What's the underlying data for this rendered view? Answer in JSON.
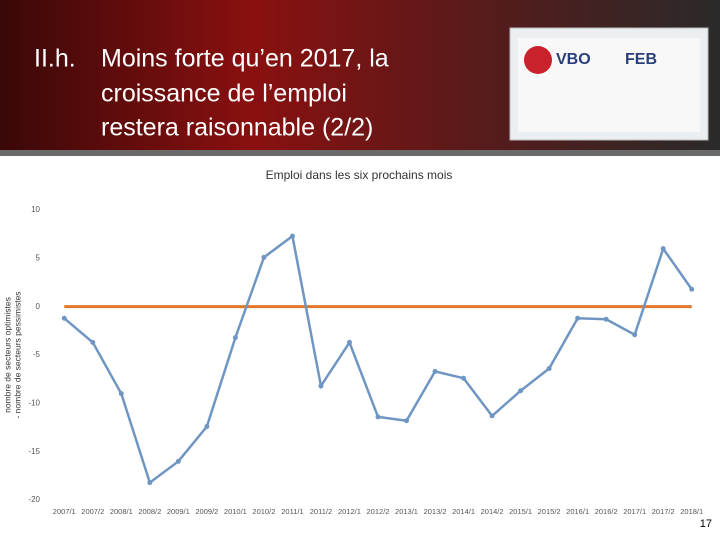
{
  "header": {
    "number": "II.h.",
    "title_lines": [
      "Moins forte qu’en 2017, la",
      "croissance de l’emploi",
      "restera raisonnable (2/2)"
    ],
    "sign": [
      "VBO",
      "FEB"
    ]
  },
  "page_number": "17",
  "chart_data": {
    "type": "line",
    "title": "Emploi dans les six prochains mois",
    "y_label_lines": [
      "nombre de secteurs optimistes",
      "- nombre de secteurs pessimistes"
    ],
    "categories": [
      "2007/1",
      "2007/2",
      "2008/1",
      "2008/2",
      "2009/1",
      "2009/2",
      "2010/1",
      "2010/2",
      "2011/1",
      "2011/2",
      "2012/1",
      "2012/2",
      "2013/1",
      "2013/2",
      "2014/1",
      "2014/2",
      "2015/1",
      "2015/2",
      "2016/1",
      "2016/2",
      "2017/1",
      "2017/2",
      "2018/1"
    ],
    "series": [
      {
        "color": "#6f96c2",
        "values": [
          -1.2,
          -3.7,
          -9.0,
          -18.2,
          -16.0,
          -12.4,
          -3.2,
          5.1,
          7.3,
          -8.2,
          -3.7,
          -11.4,
          -11.8,
          -6.7,
          -7.4,
          -11.3,
          -8.7,
          -6.4,
          -1.2,
          -1.3,
          -2.9,
          6.0,
          1.8
        ]
      },
      {
        "color": "#e0782c",
        "values": [
          0,
          0,
          0,
          0,
          0,
          0,
          0,
          0,
          0,
          0,
          0,
          0,
          0,
          0,
          0,
          0,
          0,
          0,
          0,
          0,
          0,
          0,
          0
        ]
      }
    ],
    "ylim": [
      -20,
      10
    ],
    "yticks": [
      10,
      5,
      0,
      -5,
      -10,
      -15,
      -20
    ],
    "grid": false
  }
}
